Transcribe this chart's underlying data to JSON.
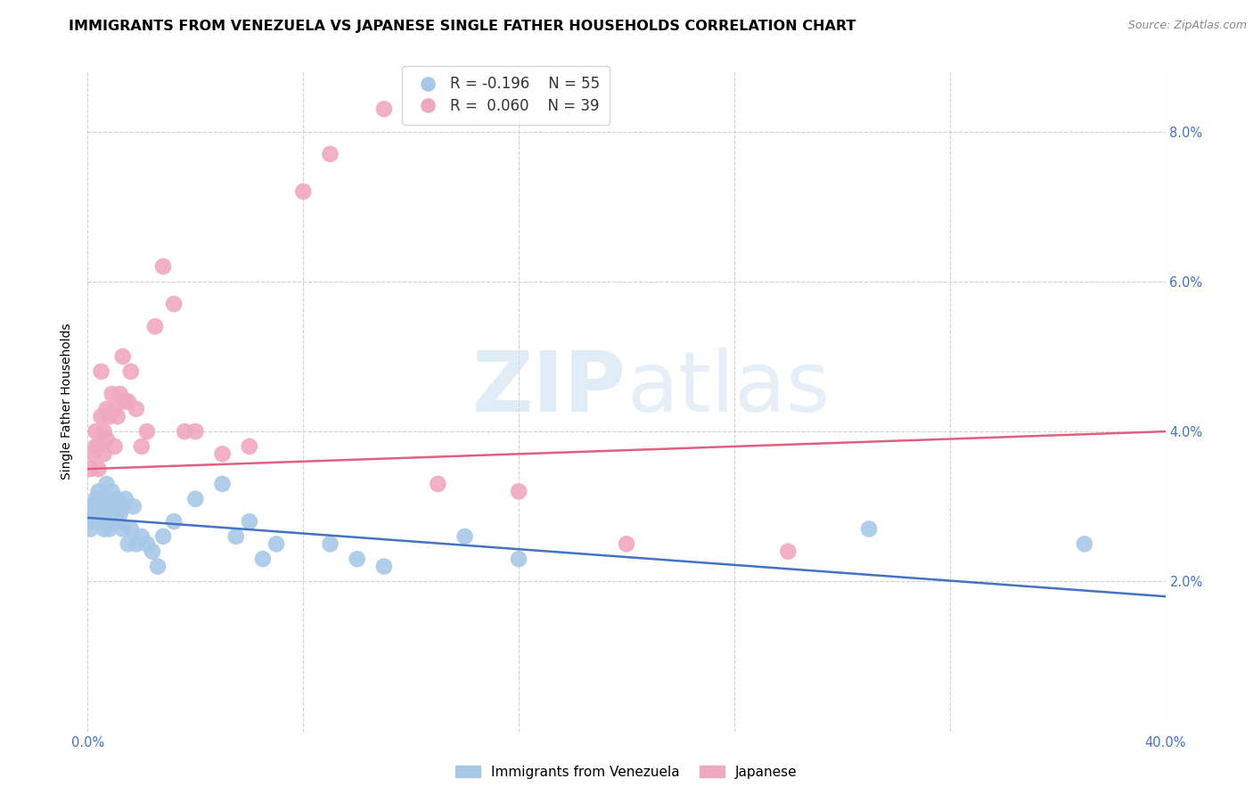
{
  "title": "IMMIGRANTS FROM VENEZUELA VS JAPANESE SINGLE FATHER HOUSEHOLDS CORRELATION CHART",
  "source": "Source: ZipAtlas.com",
  "ylabel": "Single Father Households",
  "yticks": [
    0.0,
    0.02,
    0.04,
    0.06,
    0.08
  ],
  "ytick_labels": [
    "",
    "2.0%",
    "4.0%",
    "6.0%",
    "8.0%"
  ],
  "xticks": [
    0.0,
    0.08,
    0.16,
    0.24,
    0.32,
    0.4
  ],
  "xtick_labels": [
    "0.0%",
    "",
    "",
    "",
    "",
    "40.0%"
  ],
  "xlim": [
    0.0,
    0.4
  ],
  "ylim": [
    0.0,
    0.088
  ],
  "series_blue": {
    "color": "#a8c8e8",
    "line_color": "#4472c4",
    "x": [
      0.001,
      0.001,
      0.002,
      0.002,
      0.003,
      0.003,
      0.003,
      0.004,
      0.004,
      0.004,
      0.005,
      0.005,
      0.005,
      0.006,
      0.006,
      0.006,
      0.007,
      0.007,
      0.007,
      0.008,
      0.008,
      0.008,
      0.009,
      0.009,
      0.01,
      0.01,
      0.011,
      0.011,
      0.012,
      0.013,
      0.013,
      0.014,
      0.015,
      0.016,
      0.017,
      0.018,
      0.02,
      0.022,
      0.024,
      0.026,
      0.028,
      0.032,
      0.04,
      0.05,
      0.055,
      0.06,
      0.065,
      0.07,
      0.09,
      0.1,
      0.11,
      0.14,
      0.16,
      0.29,
      0.37
    ],
    "y": [
      0.028,
      0.027,
      0.03,
      0.029,
      0.031,
      0.03,
      0.028,
      0.032,
      0.031,
      0.029,
      0.03,
      0.028,
      0.029,
      0.03,
      0.027,
      0.028,
      0.031,
      0.033,
      0.029,
      0.03,
      0.027,
      0.028,
      0.032,
      0.028,
      0.03,
      0.029,
      0.031,
      0.028,
      0.029,
      0.027,
      0.03,
      0.031,
      0.025,
      0.027,
      0.03,
      0.025,
      0.026,
      0.025,
      0.024,
      0.022,
      0.026,
      0.028,
      0.031,
      0.033,
      0.026,
      0.028,
      0.023,
      0.025,
      0.025,
      0.023,
      0.022,
      0.026,
      0.023,
      0.027,
      0.025
    ]
  },
  "series_pink": {
    "color": "#f0a8c0",
    "line_color": "#e06080",
    "x": [
      0.001,
      0.002,
      0.003,
      0.003,
      0.004,
      0.004,
      0.005,
      0.005,
      0.006,
      0.006,
      0.007,
      0.007,
      0.008,
      0.009,
      0.01,
      0.01,
      0.011,
      0.012,
      0.013,
      0.014,
      0.015,
      0.016,
      0.018,
      0.02,
      0.022,
      0.025,
      0.028,
      0.032,
      0.036,
      0.04,
      0.05,
      0.06,
      0.08,
      0.09,
      0.11,
      0.13,
      0.16,
      0.2,
      0.26
    ],
    "y": [
      0.035,
      0.037,
      0.04,
      0.038,
      0.038,
      0.035,
      0.042,
      0.048,
      0.04,
      0.037,
      0.043,
      0.039,
      0.042,
      0.045,
      0.043,
      0.038,
      0.042,
      0.045,
      0.05,
      0.044,
      0.044,
      0.048,
      0.043,
      0.038,
      0.04,
      0.054,
      0.062,
      0.057,
      0.04,
      0.04,
      0.037,
      0.038,
      0.072,
      0.077,
      0.083,
      0.033,
      0.032,
      0.025,
      0.024
    ]
  },
  "watermark_zip": "ZIP",
  "watermark_atlas": "atlas",
  "background_color": "#ffffff",
  "grid_color": "#d0d0d0",
  "tick_color": "#4472c4",
  "legend_box_color": "#e8f0f8",
  "title_fontsize": 11.5,
  "axis_label_fontsize": 10,
  "tick_fontsize": 10.5
}
